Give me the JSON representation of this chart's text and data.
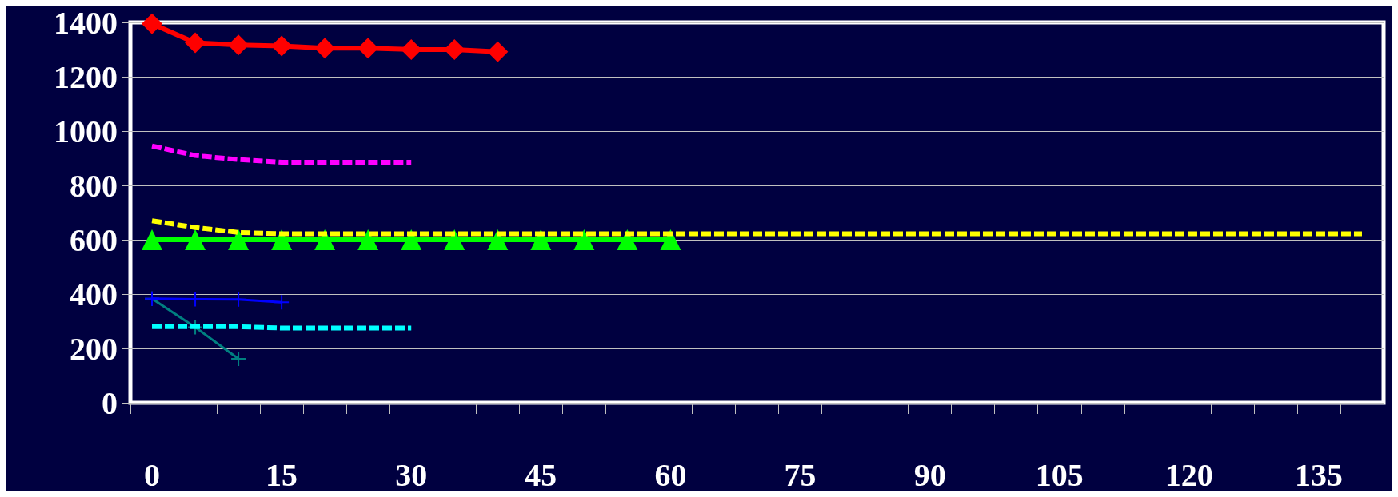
{
  "chart_data": {
    "type": "line",
    "categories": [
      "0",
      null,
      null,
      "15",
      null,
      null,
      "30",
      null,
      null,
      "45",
      null,
      null,
      "60",
      null,
      null,
      "75",
      null,
      null,
      "90",
      null,
      null,
      "105",
      null,
      null,
      "120",
      null,
      null,
      "135",
      null
    ],
    "ylim": [
      0,
      1400
    ],
    "yticks": [
      0,
      200,
      400,
      600,
      800,
      1000,
      1200,
      1400
    ],
    "grid": "y",
    "series": [
      {
        "color": "#ff0000",
        "marker": "diamond",
        "line_style": "solid",
        "values": [
          1395,
          1325,
          1317,
          1313,
          1305,
          1305,
          1300,
          1300,
          1292,
          null,
          null,
          null,
          null,
          null,
          null,
          null,
          null,
          null,
          null,
          null,
          null,
          null,
          null,
          null,
          null,
          null,
          null,
          null,
          null
        ]
      },
      {
        "color": "#ff00ff",
        "marker": "none",
        "line_style": "dashed",
        "values": [
          945,
          910,
          895,
          885,
          885,
          885,
          885,
          null,
          null,
          null,
          null,
          null,
          null,
          null,
          null,
          null,
          null,
          null,
          null,
          null,
          null,
          null,
          null,
          null,
          null,
          null,
          null,
          null,
          null
        ]
      },
      {
        "color": "#ffff00",
        "marker": "none",
        "line_style": "dashed",
        "values": [
          670,
          645,
          627,
          622,
          622,
          622,
          622,
          622,
          622,
          622,
          622,
          622,
          622,
          622,
          622,
          622,
          622,
          622,
          622,
          622,
          622,
          622,
          622,
          622,
          622,
          622,
          622,
          622,
          622
        ]
      },
      {
        "color": "#00ff00",
        "marker": "triangle",
        "line_style": "solid",
        "values": [
          600,
          600,
          600,
          600,
          600,
          600,
          600,
          600,
          600,
          600,
          600,
          600,
          600,
          null,
          null,
          null,
          null,
          null,
          null,
          null,
          null,
          null,
          null,
          null,
          null,
          null,
          null,
          null,
          null
        ]
      },
      {
        "color": "#0000ff",
        "marker": "cross",
        "line_style": "solid",
        "values": [
          383,
          381,
          380,
          370,
          null,
          null,
          null,
          null,
          null,
          null,
          null,
          null,
          null,
          null,
          null,
          null,
          null,
          null,
          null,
          null,
          null,
          null,
          null,
          null,
          null,
          null,
          null,
          null,
          null
        ]
      },
      {
        "color": "#00ffff",
        "marker": "none",
        "line_style": "dashed",
        "values": [
          280,
          280,
          280,
          275,
          275,
          275,
          275,
          null,
          null,
          null,
          null,
          null,
          null,
          null,
          null,
          null,
          null,
          null,
          null,
          null,
          null,
          null,
          null,
          null,
          null,
          null,
          null,
          null,
          null
        ]
      },
      {
        "color": "#008080",
        "marker": "cross",
        "line_style": "solid",
        "values": [
          383,
          278,
          162,
          null,
          null,
          null,
          null,
          null,
          null,
          null,
          null,
          null,
          null,
          null,
          null,
          null,
          null,
          null,
          null,
          null,
          null,
          null,
          null,
          null,
          null,
          null,
          null,
          null,
          null
        ]
      }
    ]
  }
}
